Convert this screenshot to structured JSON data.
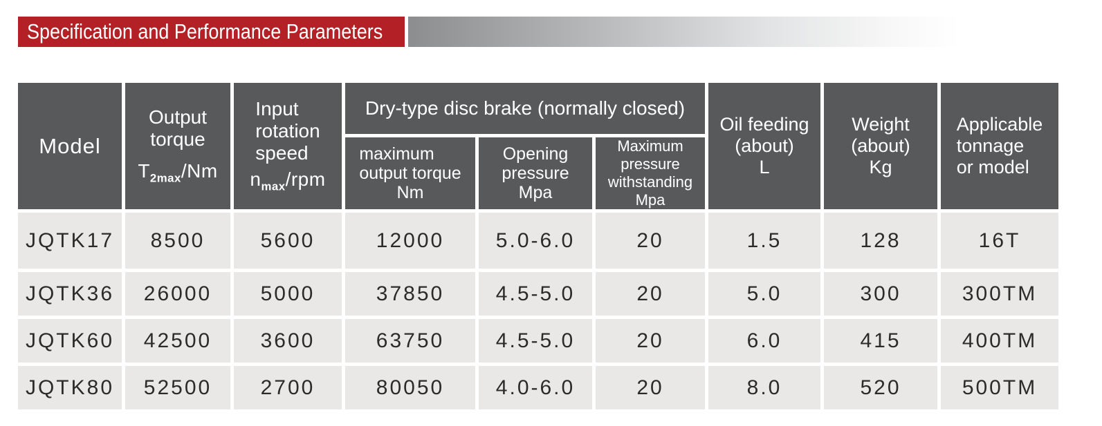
{
  "banner": {
    "title": "Specification and Performance Parameters"
  },
  "colors": {
    "banner_bg": "#b32126",
    "banner_text": "#ffffff",
    "gradient_start": "#8b8d8f",
    "header_bg": "#58595b",
    "header_text": "#ffffff",
    "row_bg": "#e9e8e6",
    "row_text": "#2b2b2b",
    "separator": "#ffffff"
  },
  "header": {
    "model": "Model",
    "output_torque": {
      "line1": "Output",
      "line2": "torque",
      "sym_base": "T",
      "sym_sub": "2max",
      "sym_rest": "/Nm"
    },
    "input_speed": {
      "line1": "Input",
      "line2": "rotation",
      "line3": "speed",
      "sym_base": "n",
      "sym_sub": "max",
      "sym_rest": "/rpm"
    },
    "brake_group": "Dry-type disc brake (normally closed)",
    "brake_max_torque": {
      "line1": "maximum",
      "line2": "output torque",
      "unit": "Nm"
    },
    "brake_opening": {
      "line1": "Opening",
      "line2": "pressure",
      "unit": "Mpa"
    },
    "brake_max_pressure": {
      "line1": "Maximum pressure",
      "line2": "withstanding",
      "unit": "Mpa"
    },
    "oil": {
      "line1": "Oil feeding",
      "line2": "(about)",
      "unit": "L"
    },
    "weight": {
      "line1": "Weight",
      "line2": "(about)",
      "unit": "Kg"
    },
    "applicable": {
      "line1": "Applicable",
      "line2": "tonnage",
      "line3": "or model"
    }
  },
  "rows": [
    {
      "model": "JQTK17",
      "output_torque": "8500",
      "input_speed": "5600",
      "max_output_torque": "12000",
      "opening_pressure": "5.0-6.0",
      "max_pressure": "20",
      "oil_feeding": "1.5",
      "weight": "128",
      "applicable": "16T"
    },
    {
      "model": "JQTK36",
      "output_torque": "26000",
      "input_speed": "5000",
      "max_output_torque": "37850",
      "opening_pressure": "4.5-5.0",
      "max_pressure": "20",
      "oil_feeding": "5.0",
      "weight": "300",
      "applicable": "300TM"
    },
    {
      "model": "JQTK60",
      "output_torque": "42500",
      "input_speed": "3600",
      "max_output_torque": "63750",
      "opening_pressure": "4.5-5.0",
      "max_pressure": "20",
      "oil_feeding": "6.0",
      "weight": "415",
      "applicable": "400TM"
    },
    {
      "model": "JQTK80",
      "output_torque": "52500",
      "input_speed": "2700",
      "max_output_torque": "80050",
      "opening_pressure": "4.0-6.0",
      "max_pressure": "20",
      "oil_feeding": "8.0",
      "weight": "520",
      "applicable": "500TM"
    }
  ]
}
